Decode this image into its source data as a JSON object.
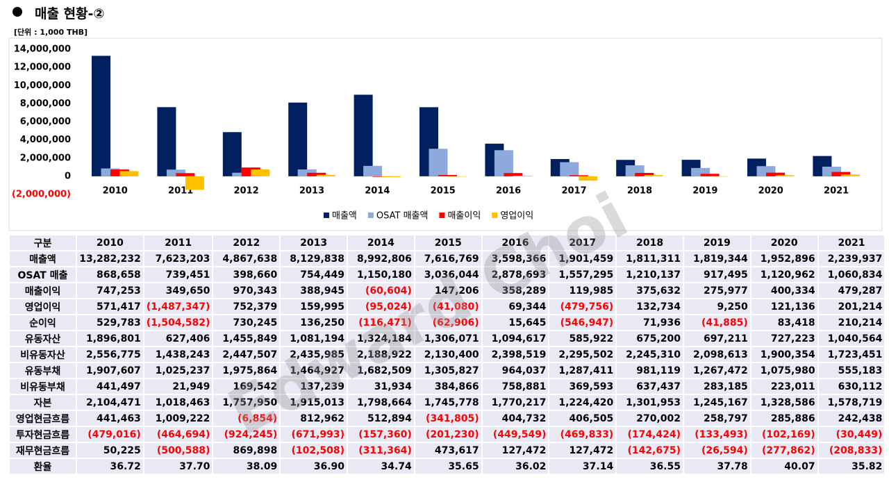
{
  "header": {
    "title": "매출 현황-②",
    "unit": "[단위 : 1,000 THB]"
  },
  "watermark": "Edward Choi",
  "chart_data": {
    "type": "bar",
    "categories": [
      "2010",
      "2011",
      "2012",
      "2013",
      "2014",
      "2015",
      "2016",
      "2017",
      "2018",
      "2019",
      "2020",
      "2021"
    ],
    "series": [
      {
        "name": "매출액",
        "color": "#002060",
        "values": [
          13282232,
          7623203,
          4867638,
          8129838,
          8992806,
          7616769,
          3598366,
          1901459,
          1811311,
          1819344,
          1952896,
          2239937
        ]
      },
      {
        "name": "OSAT 매출액",
        "color": "#8EA9DB",
        "values": [
          868658,
          739451,
          398660,
          754449,
          1150180,
          3036044,
          2878693,
          1557295,
          1210137,
          917495,
          1120962,
          1060834
        ]
      },
      {
        "name": "매출이익",
        "color": "#FF0000",
        "values": [
          747253,
          349650,
          970343,
          388945,
          -60604,
          147206,
          358289,
          119985,
          375632,
          275977,
          400334,
          479287
        ]
      },
      {
        "name": "영업이익",
        "color": "#FFC000",
        "values": [
          571417,
          -1487347,
          752379,
          159995,
          -95024,
          -41080,
          69344,
          -479756,
          132734,
          9250,
          121136,
          201214
        ]
      }
    ],
    "ylim": [
      -2000000,
      14000000
    ],
    "yticks": [
      {
        "value": -2000000,
        "label": "(2,000,000)"
      },
      0,
      {
        "value": 2000000,
        "label": "2,000,000"
      },
      {
        "value": 4000000,
        "label": "4,000,000"
      },
      {
        "value": 6000000,
        "label": "6,000,000"
      },
      {
        "value": 8000000,
        "label": "8,000,000"
      },
      {
        "value": 10000000,
        "label": "10,000,000"
      },
      {
        "value": 12000000,
        "label": "12,000,000"
      },
      {
        "value": 14000000,
        "label": "14,000,000"
      }
    ],
    "legend": "bottom",
    "grid": false
  },
  "table": {
    "rows": [
      [
        "구분",
        "2010",
        "2011",
        "2012",
        "2013",
        "2014",
        "2015",
        "2016",
        "2017",
        "2018",
        "2019",
        "2020",
        "2021"
      ],
      [
        "매출액",
        "13,282,232",
        "7,623,203",
        "4,867,638",
        "8,129,838",
        "8,992,806",
        "7,616,769",
        "3,598,366",
        "1,901,459",
        "1,811,311",
        "1,819,344",
        "1,952,896",
        "2,239,937"
      ],
      [
        "OSAT 매출",
        "868,658",
        "739,451",
        "398,660",
        "754,449",
        "1,150,180",
        "3,036,044",
        "2,878,693",
        "1,557,295",
        "1,210,137",
        "917,495",
        "1,120,962",
        "1,060,834"
      ],
      [
        "매출이익",
        "747,253",
        "349,650",
        "970,343",
        "388,945",
        "(60,604)",
        "147,206",
        "358,289",
        "119,985",
        "375,632",
        "275,977",
        "400,334",
        "479,287"
      ],
      [
        "영업이익",
        "571,417",
        "(1,487,347)",
        "752,379",
        "159,995",
        "(95,024)",
        "(41,080)",
        "69,344",
        "(479,756)",
        "132,734",
        "9,250",
        "121,136",
        "201,214"
      ],
      [
        "순이익",
        "529,783",
        "(1,504,582)",
        "730,245",
        "136,250",
        "(116,471)",
        "(62,906)",
        "15,645",
        "(546,947)",
        "71,936",
        "(41,885)",
        "83,418",
        "210,214"
      ],
      [
        "유동자산",
        "1,896,801",
        "627,406",
        "1,455,849",
        "1,081,194",
        "1,324,184",
        "1,306,071",
        "1,094,617",
        "585,922",
        "675,200",
        "697,211",
        "727,223",
        "1,040,564"
      ],
      [
        "비유동자산",
        "2,556,775",
        "1,438,243",
        "2,447,507",
        "2,435,985",
        "2,188,922",
        "2,130,400",
        "2,398,519",
        "2,295,502",
        "2,245,310",
        "2,098,613",
        "1,900,354",
        "1,723,451"
      ],
      [
        "유동부채",
        "1,907,607",
        "1,025,237",
        "1,975,864",
        "1,464,927",
        "1,682,509",
        "1,305,827",
        "964,037",
        "1,287,411",
        "981,119",
        "1,267,472",
        "1,075,980",
        "555,183"
      ],
      [
        "비유동부채",
        "441,497",
        "21,949",
        "169,542",
        "137,239",
        "31,934",
        "384,866",
        "758,881",
        "369,593",
        "637,437",
        "283,185",
        "223,011",
        "630,112"
      ],
      [
        "자본",
        "2,104,471",
        "1,018,463",
        "1,757,950",
        "1,915,013",
        "1,798,664",
        "1,745,778",
        "1,770,217",
        "1,224,420",
        "1,301,953",
        "1,245,167",
        "1,328,586",
        "1,578,719"
      ],
      [
        "영업현금흐름",
        "441,463",
        "1,009,222",
        "(6,854)",
        "812,962",
        "512,894",
        "(341,805)",
        "404,732",
        "406,505",
        "270,002",
        "258,797",
        "285,886",
        "242,438"
      ],
      [
        "투자현금흐름",
        "(479,016)",
        "(464,694)",
        "(924,245)",
        "(671,993)",
        "(157,360)",
        "(201,230)",
        "(449,549)",
        "(469,833)",
        "(174,424)",
        "(133,493)",
        "(102,169)",
        "(30,449)"
      ],
      [
        "재무현금흐름",
        "50,225",
        "(500,588)",
        "869,898",
        "(102,508)",
        "(311,364)",
        "473,617",
        "127,472",
        "127,472",
        "(142,675)",
        "(26,594)",
        "(277,862)",
        "(208,833)"
      ],
      [
        "환율",
        "36.72",
        "37.70",
        "38.09",
        "36.90",
        "34.74",
        "35.65",
        "36.02",
        "37.14",
        "36.55",
        "37.78",
        "40.07",
        "35.82"
      ]
    ]
  }
}
